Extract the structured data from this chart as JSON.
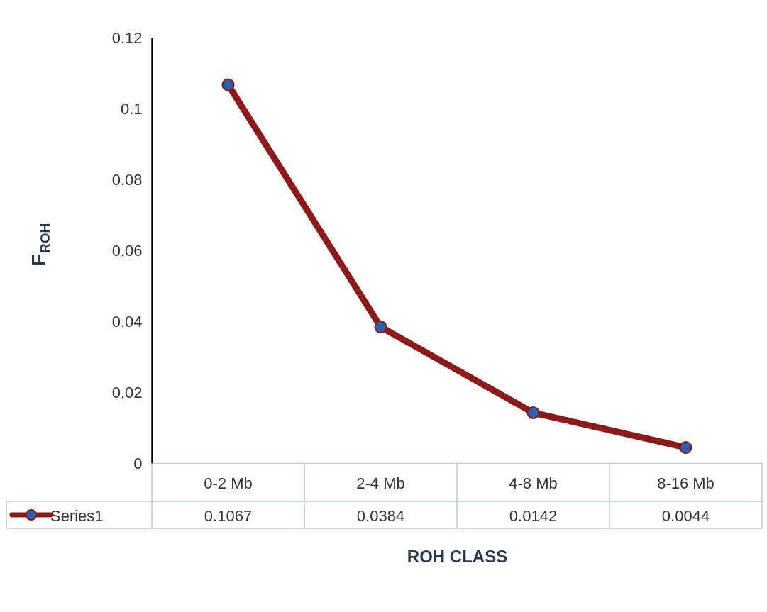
{
  "chart_data": {
    "type": "line",
    "xlabel": "ROH CLASS",
    "ylabel": "F$_{ROH}$",
    "categories": [
      "0-2 Mb",
      "2-4 Mb",
      "4-8 Mb",
      "8-16 Mb"
    ],
    "series": [
      {
        "name": "Series1",
        "color": "#8b1a1a",
        "values": [
          0.1067,
          0.0384,
          0.0142,
          0.0044
        ]
      }
    ],
    "ylim": [
      0,
      0.12
    ],
    "yticks": [
      0,
      0.02,
      0.04,
      0.06,
      0.08,
      0.1,
      0.12
    ],
    "grid": false,
    "marker": "circle",
    "line_style": "solid",
    "data_labels": true,
    "legend": "bottom left"
  }
}
